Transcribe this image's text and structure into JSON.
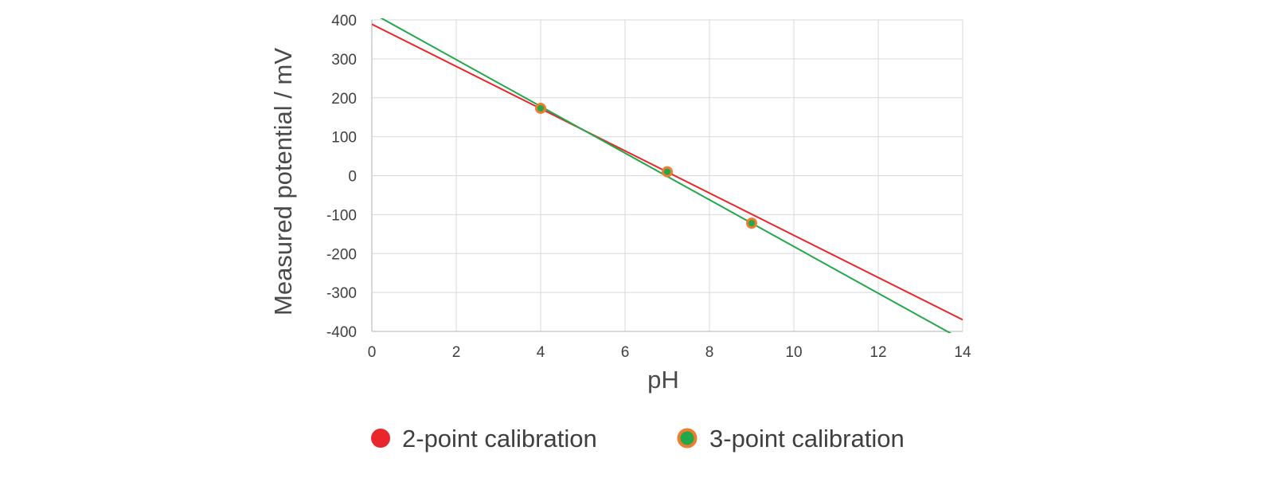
{
  "chart_data": {
    "type": "line",
    "title": "",
    "xlabel": "pH",
    "ylabel": "Measured potential / mV",
    "xlim": [
      0,
      14
    ],
    "ylim": [
      -400,
      400
    ],
    "x_ticks": [
      0,
      2,
      4,
      6,
      8,
      10,
      12,
      14
    ],
    "x_tick_labels": [
      "0",
      "2",
      "4",
      "6",
      "8",
      "10",
      "12",
      "14"
    ],
    "y_ticks": [
      400,
      300,
      200,
      100,
      0,
      -100,
      -200,
      -300,
      -400
    ],
    "y_tick_labels": [
      "400",
      "300",
      "200",
      "100",
      "0",
      "-100",
      "-200",
      "-300",
      "-400"
    ],
    "grid": true,
    "legend_position": "bottom",
    "series": [
      {
        "name": "2-point calibration",
        "color": "#e8262b",
        "line": {
          "x": [
            0,
            14
          ],
          "y": [
            389,
            -370
          ]
        }
      },
      {
        "name": "3-point calibration",
        "color": "#22a84a",
        "marker_edge_color": "#ed7d31",
        "line": {
          "x": [
            0,
            14
          ],
          "y": [
            418,
            -422
          ]
        },
        "points": {
          "x": [
            4,
            7,
            9
          ],
          "y": [
            173,
            10,
            -122
          ]
        }
      }
    ]
  }
}
